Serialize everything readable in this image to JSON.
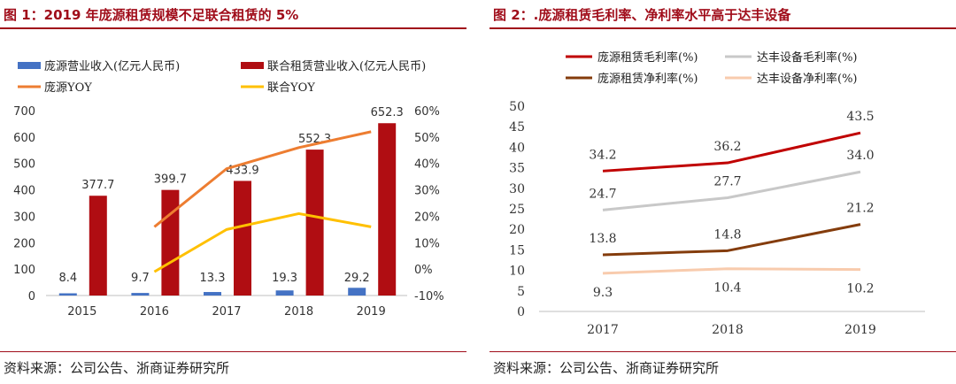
{
  "chart_data": [
    {
      "type": "bar",
      "title": "图 1：2019 年庞源租赁规模不足联合租赁的 5%",
      "source": "资料来源：公司公告、浙商证券研究所",
      "categories": [
        "2015",
        "2016",
        "2017",
        "2018",
        "2019"
      ],
      "ylim": [
        0,
        700
      ],
      "y_ticks": [
        "0",
        "100",
        "200",
        "300",
        "400",
        "500",
        "600",
        "700"
      ],
      "y2lim": [
        -10,
        60
      ],
      "y2_ticks": [
        "-10%",
        "0%",
        "10%",
        "20%",
        "30%",
        "40%",
        "50%",
        "60%"
      ],
      "series": [
        {
          "name": "庞源营业收入(亿元人民币)",
          "kind": "bar",
          "axis": "left",
          "color": "#4472c4",
          "values": [
            8.4,
            9.7,
            13.3,
            19.3,
            29.2
          ],
          "labels": [
            "8.4",
            "9.7",
            "13.3",
            "19.3",
            "29.2"
          ]
        },
        {
          "name": "联合租赁营业收入(亿元人民币)",
          "kind": "bar",
          "axis": "left",
          "color": "#b00d12",
          "values": [
            377.7,
            399.7,
            433.9,
            552.3,
            652.3
          ],
          "labels": [
            "377.7",
            "399.7",
            "433.9",
            "552.3",
            "652.3"
          ]
        },
        {
          "name": "庞源YOY",
          "kind": "line",
          "axis": "right",
          "color": "#ed7d31",
          "values": [
            null,
            16,
            38,
            46,
            52
          ]
        },
        {
          "name": "联合YOY",
          "kind": "line",
          "axis": "right",
          "color": "#ffc000",
          "values": [
            null,
            -1,
            15,
            21,
            16
          ]
        }
      ]
    },
    {
      "type": "line",
      "title": "图 2：.庞源租赁毛利率、净利率水平高于达丰设备",
      "source": "资料来源：公司公告、浙商证券研究所",
      "x": [
        "2017",
        "2018",
        "2019"
      ],
      "ylim": [
        0,
        50
      ],
      "y_ticks": [
        "0",
        "5",
        "10",
        "15",
        "20",
        "25",
        "30",
        "35",
        "40",
        "45",
        "50"
      ],
      "series": [
        {
          "name": "庞源租赁毛利率(%)",
          "color": "#c00000",
          "values": [
            34.2,
            36.2,
            43.5
          ],
          "labels": [
            "34.2",
            "36.2",
            "43.5"
          ]
        },
        {
          "name": "达丰设备毛利率(%)",
          "color": "#c8c8c8",
          "values": [
            24.7,
            27.7,
            34.0
          ],
          "labels": [
            "24.7",
            "27.7",
            "34.0"
          ]
        },
        {
          "name": "庞源租赁净利率(%)",
          "color": "#843c0c",
          "values": [
            13.8,
            14.8,
            21.2
          ],
          "labels": [
            "13.8",
            "14.8",
            "21.2"
          ]
        },
        {
          "name": "达丰设备净利率(%)",
          "color": "#f8cbad",
          "values": [
            9.3,
            10.4,
            10.2
          ],
          "labels": [
            "9.3",
            "10.4",
            "10.2"
          ]
        }
      ]
    }
  ]
}
